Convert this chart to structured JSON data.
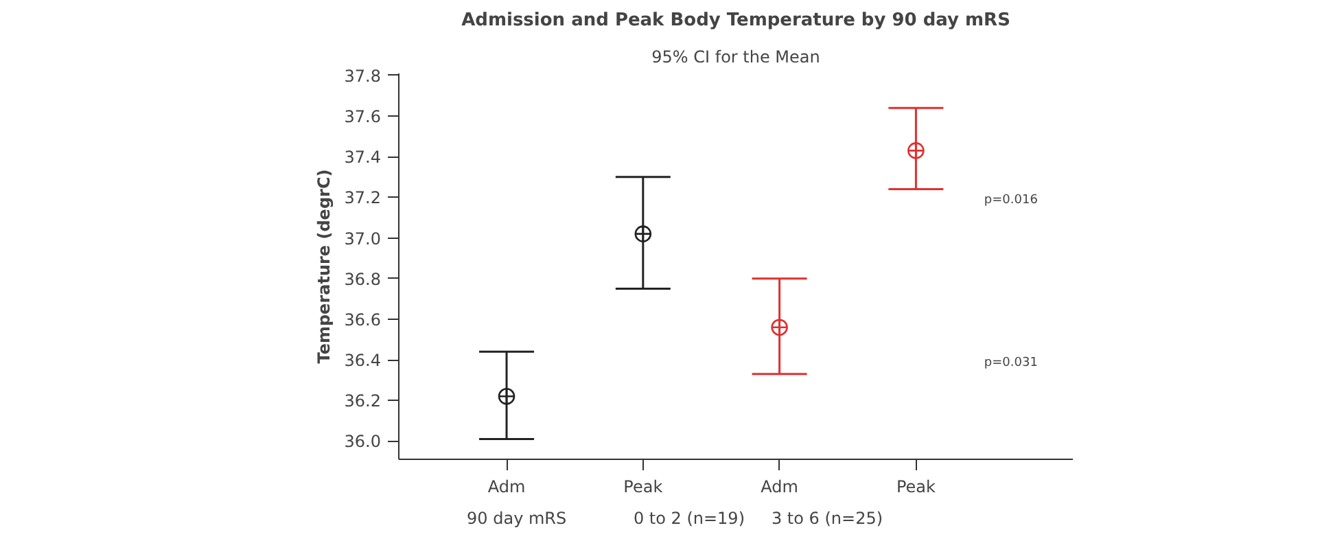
{
  "chart_data": {
    "type": "scatter",
    "title": "Admission and Peak Body Temperature by 90 day mRS",
    "subtitle": "95% CI for the Mean",
    "ylabel": "Temperature (degrC)",
    "xlabel": "90 day mRS",
    "categories": [
      "Adm",
      "Peak",
      "Adm",
      "Peak"
    ],
    "values": [
      36.22,
      37.02,
      36.56,
      37.43
    ],
    "errors": [
      [
        36.01,
        36.44
      ],
      [
        36.75,
        37.3
      ],
      [
        36.33,
        36.8
      ],
      [
        37.24,
        37.64
      ]
    ],
    "colors": [
      "#222222",
      "#222222",
      "#e03030",
      "#e03030"
    ],
    "marker": "circle",
    "ylim": [
      35.91,
      37.81
    ],
    "yticks": [
      {
        "value": 36.0,
        "label": "36.0"
      },
      {
        "value": 36.2,
        "label": "36.2"
      },
      {
        "value": 36.4,
        "label": "36.4"
      },
      {
        "value": 36.6,
        "label": "36.6"
      },
      {
        "value": 36.8,
        "label": "36.8"
      },
      {
        "value": 37.0,
        "label": "37.0"
      },
      {
        "value": 37.2,
        "label": "37.2"
      },
      {
        "value": 37.4,
        "label": "37.4"
      },
      {
        "value": 37.6,
        "label": "37.6"
      },
      {
        "value": 37.8,
        "label": "37.8"
      }
    ],
    "grid": false,
    "annotations": [
      {
        "text": "0 to 2 (n=19)"
      },
      {
        "text": "3 to 6 (n=25)"
      },
      "p=0.016",
      "p=0.031"
    ]
  }
}
